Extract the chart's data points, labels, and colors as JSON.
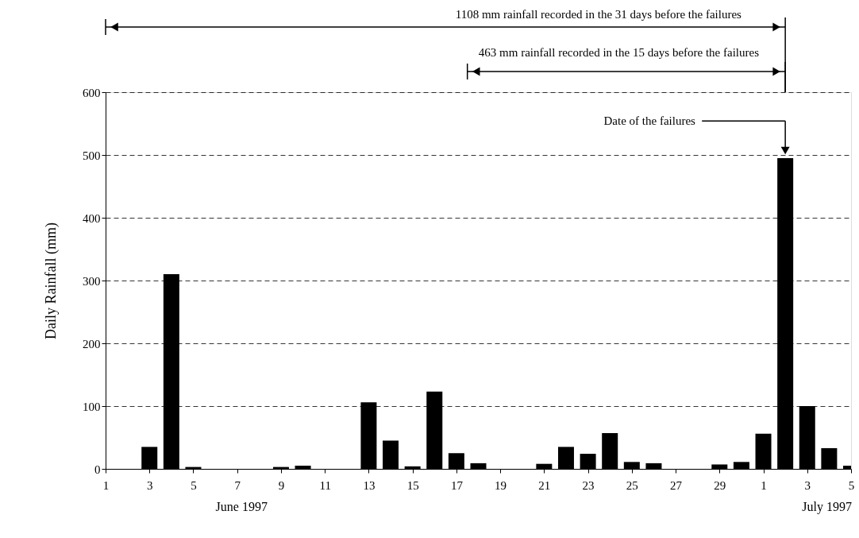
{
  "chart_data": {
    "type": "bar",
    "ylabel": "Daily Rainfall (mm)",
    "x": [
      "1997-06-01",
      "1997-06-02",
      "1997-06-03",
      "1997-06-04",
      "1997-06-05",
      "1997-06-06",
      "1997-06-07",
      "1997-06-08",
      "1997-06-09",
      "1997-06-10",
      "1997-06-11",
      "1997-06-12",
      "1997-06-13",
      "1997-06-14",
      "1997-06-15",
      "1997-06-16",
      "1997-06-17",
      "1997-06-18",
      "1997-06-19",
      "1997-06-20",
      "1997-06-21",
      "1997-06-22",
      "1997-06-23",
      "1997-06-24",
      "1997-06-25",
      "1997-06-26",
      "1997-06-27",
      "1997-06-28",
      "1997-06-29",
      "1997-06-30",
      "1997-07-01",
      "1997-07-02",
      "1997-07-03",
      "1997-07-04",
      "1997-07-05"
    ],
    "values": [
      0,
      0,
      35,
      310,
      3,
      0,
      0,
      0,
      3,
      5,
      0,
      0,
      106,
      45,
      4,
      123,
      25,
      9,
      0,
      0,
      8,
      35,
      24,
      57,
      11,
      9,
      0,
      0,
      7,
      11,
      56,
      495,
      100,
      33,
      5
    ],
    "color": "#000000",
    "xlim": [
      "1997-06-01",
      "1997-07-05"
    ],
    "xticks": [
      {
        "value": "1997-06-01",
        "label": "1"
      },
      {
        "value": "1997-06-03",
        "label": "3"
      },
      {
        "value": "1997-06-05",
        "label": "5"
      },
      {
        "value": "1997-06-07",
        "label": "7"
      },
      {
        "value": "1997-06-09",
        "label": "9"
      },
      {
        "value": "1997-06-11",
        "label": "11"
      },
      {
        "value": "1997-06-13",
        "label": "13"
      },
      {
        "value": "1997-06-15",
        "label": "15"
      },
      {
        "value": "1997-06-17",
        "label": "17"
      },
      {
        "value": "1997-06-19",
        "label": "19"
      },
      {
        "value": "1997-06-21",
        "label": "21"
      },
      {
        "value": "1997-06-23",
        "label": "23"
      },
      {
        "value": "1997-06-25",
        "label": "25"
      },
      {
        "value": "1997-06-27",
        "label": "27"
      },
      {
        "value": "1997-06-29",
        "label": "29"
      },
      {
        "value": "1997-07-01",
        "label": "1"
      },
      {
        "value": "1997-07-03",
        "label": "3"
      },
      {
        "value": "1997-07-05",
        "label": "5"
      }
    ],
    "ylim": [
      0,
      600
    ],
    "yticks": [
      0,
      100,
      200,
      300,
      400,
      500,
      600
    ],
    "grid": "y",
    "annotations": [
      "1108 mm rainfall recorded in the 31 days before the failures",
      "463 mm rainfall recorded in the 15 days before the failures",
      "Date of the failures",
      "June 1997",
      "July 1997"
    ]
  }
}
